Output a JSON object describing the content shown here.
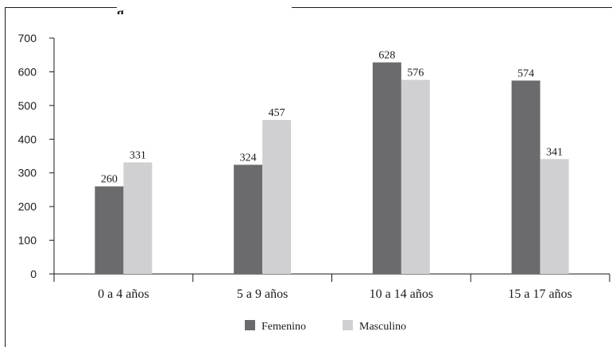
{
  "chart_data": {
    "type": "bar",
    "title_fragment": "g",
    "categories": [
      "0 a 4 años",
      "5 a 9 años",
      "10 a 14 años",
      "15 a 17 años"
    ],
    "series": [
      {
        "name": "Femenino",
        "values": [
          260,
          324,
          628,
          574
        ],
        "color": "#6b6b6d"
      },
      {
        "name": "Masculino",
        "values": [
          331,
          457,
          576,
          341
        ],
        "color": "#d0d0d2"
      }
    ],
    "yticks": [
      "0",
      "100",
      "200",
      "300",
      "400",
      "500",
      "600",
      "700"
    ],
    "ylim": [
      0,
      700
    ],
    "grid": false,
    "legend": "bottom-center",
    "xlabel": "",
    "ylabel": ""
  }
}
